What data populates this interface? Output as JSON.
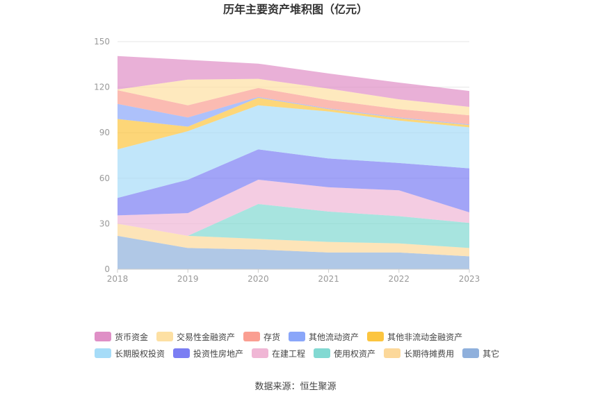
{
  "chart_data": {
    "type": "area",
    "stacked": true,
    "title": "历年主要资产堆积图（亿元）",
    "categories": [
      "2018",
      "2019",
      "2020",
      "2021",
      "2022",
      "2023"
    ],
    "ylim": [
      0,
      150
    ],
    "yticks": [
      0,
      30,
      60,
      90,
      120,
      150
    ],
    "grid": true,
    "legend_position": "bottom",
    "series": [
      {
        "name": "其它",
        "color": "#8fb0dc",
        "values": [
          22,
          14,
          13,
          11,
          11,
          8.5
        ]
      },
      {
        "name": "长期待摊费用",
        "color": "#fcd89a",
        "values": [
          8,
          8,
          7,
          7,
          6,
          5.5
        ]
      },
      {
        "name": "使用权资产",
        "color": "#82d9d2",
        "values": [
          0,
          0,
          23,
          20,
          18,
          16.5
        ]
      },
      {
        "name": "在建工程",
        "color": "#f0b6d5",
        "values": [
          5.5,
          15,
          16,
          16,
          17,
          7
        ]
      },
      {
        "name": "投资性房地产",
        "color": "#7b7ef3",
        "values": [
          11.5,
          22,
          20,
          19,
          18,
          29
        ]
      },
      {
        "name": "长期股权投资",
        "color": "#a6dcf8",
        "values": [
          32,
          32,
          29,
          31,
          28,
          27
        ]
      },
      {
        "name": "其他非流动金融资产",
        "color": "#fcc53f",
        "values": [
          20,
          3,
          5,
          1.5,
          1.5,
          1.5
        ]
      },
      {
        "name": "其他流动资产",
        "color": "#8aa6f9",
        "values": [
          10,
          6,
          0.5,
          0.5,
          0.5,
          0.5
        ]
      },
      {
        "name": "存货",
        "color": "#fa9e91",
        "values": [
          9,
          8,
          6,
          5.5,
          5.5,
          6
        ]
      },
      {
        "name": "交易性金融资产",
        "color": "#fde0a3",
        "values": [
          0.5,
          17,
          6,
          7.5,
          6.5,
          5.5
        ]
      },
      {
        "name": "货币资金",
        "color": "#df8fc6",
        "values": [
          22,
          13,
          10,
          10,
          11,
          10.5
        ]
      }
    ]
  },
  "legend": {
    "rows": [
      [
        {
          "name": "货币资金",
          "color": "#df8fc6"
        },
        {
          "name": "交易性金融资产",
          "color": "#fde0a3"
        },
        {
          "name": "存货",
          "color": "#fa9e91"
        },
        {
          "name": "其他流动资产",
          "color": "#8aa6f9"
        },
        {
          "name": "其他非流动金融资产",
          "color": "#fcc53f"
        }
      ],
      [
        {
          "name": "长期股权投资",
          "color": "#a6dcf8"
        },
        {
          "name": "投资性房地产",
          "color": "#7b7ef3"
        },
        {
          "name": "在建工程",
          "color": "#f0b6d5"
        },
        {
          "name": "使用权资产",
          "color": "#82d9d2"
        },
        {
          "name": "长期待摊费用",
          "color": "#fcd89a"
        },
        {
          "name": "其它",
          "color": "#8fb0dc"
        }
      ]
    ]
  },
  "source": "数据来源：恒生聚源"
}
